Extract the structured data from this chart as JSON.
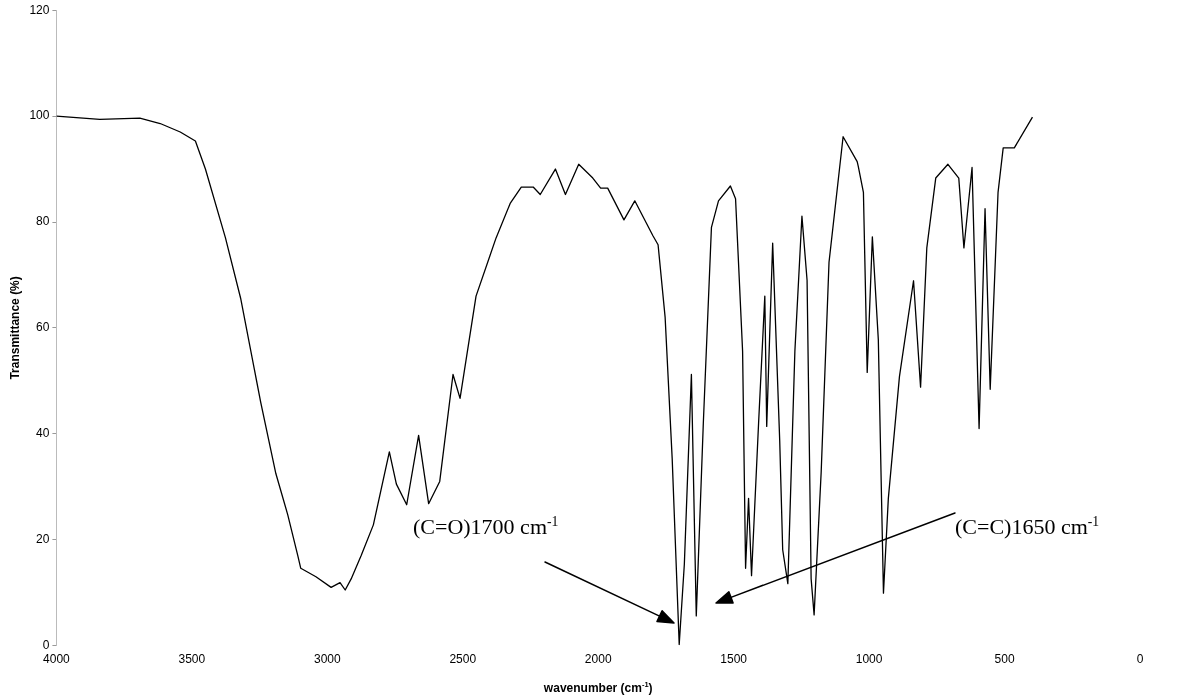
{
  "chart_data": {
    "type": "line",
    "xlabel": "wavenumber (cm$^{-1}$)",
    "ylabel": "Transmittance (%)",
    "xlim": [
      4000,
      0
    ],
    "xticks": [
      4000,
      3500,
      3000,
      2500,
      2000,
      1500,
      1000,
      500,
      0
    ],
    "ylim": [
      0,
      120
    ],
    "yticks": [
      0,
      20,
      40,
      60,
      80,
      100,
      120
    ],
    "grid": false,
    "legend": false,
    "marker": "none",
    "line_style": "solid",
    "series": [
      {
        "color": "#000000",
        "x": [
          4000,
          3840,
          3692,
          3617,
          3543,
          3487,
          3450,
          3376,
          3320,
          3246,
          3190,
          3146,
          3109,
          3098,
          3042,
          2986,
          2953,
          2934,
          2912,
          2875,
          2830,
          2771,
          2745,
          2707,
          2663,
          2626,
          2585,
          2536,
          2510,
          2451,
          2377,
          2325,
          2284,
          2240,
          2214,
          2158,
          2121,
          2072,
          2020,
          1991,
          1965,
          1905,
          1865,
          1798,
          1779,
          1753,
          1727,
          1701,
          1682,
          1656,
          1638,
          1612,
          1582,
          1556,
          1512,
          1493,
          1467,
          1456,
          1445,
          1434,
          1408,
          1385,
          1378,
          1356,
          1330,
          1319,
          1300,
          1274,
          1248,
          1229,
          1214,
          1203,
          1177,
          1148,
          1096,
          1044,
          1040,
          1021,
          1007,
          988,
          966,
          947,
          929,
          888,
          836,
          810,
          787,
          754,
          709,
          669,
          650,
          620,
          594,
          572,
          553,
          524,
          505,
          464,
          397
        ],
        "values": [
          100,
          99.4,
          99.6,
          98.6,
          97,
          95.3,
          90,
          77,
          65.6,
          46,
          32.5,
          24.7,
          17,
          14.6,
          13,
          11,
          11.9,
          10.5,
          12.6,
          17,
          22.8,
          36.6,
          30.5,
          26.6,
          39.7,
          26.8,
          31,
          51.2,
          46.7,
          66,
          77,
          83.5,
          86.6,
          86.6,
          85.2,
          90,
          85.2,
          90.9,
          88.3,
          86.4,
          86.4,
          80.4,
          84,
          77.4,
          75.7,
          62,
          35.4,
          0.2,
          15.4,
          51.2,
          5.6,
          42,
          79,
          84,
          86.8,
          84.4,
          55.6,
          14.6,
          27.8,
          13.2,
          42,
          66,
          41.4,
          76,
          38.7,
          18.1,
          11.7,
          55.6,
          81.1,
          69,
          12.6,
          5.8,
          32.7,
          72.4,
          96.1,
          91.4,
          90.5,
          85.6,
          51.6,
          77.2,
          57.8,
          9.9,
          27.8,
          50.8,
          68.9,
          48.8,
          75.1,
          88.3,
          90.9,
          88.3,
          75.1,
          90.3,
          41,
          82.5,
          48.4,
          85.6,
          94,
          94,
          99.8
        ]
      }
    ],
    "annotations": [
      "(C=O)1700 cm$^{-1}$",
      "(C=C)1650 cm$^{-1}$"
    ]
  }
}
